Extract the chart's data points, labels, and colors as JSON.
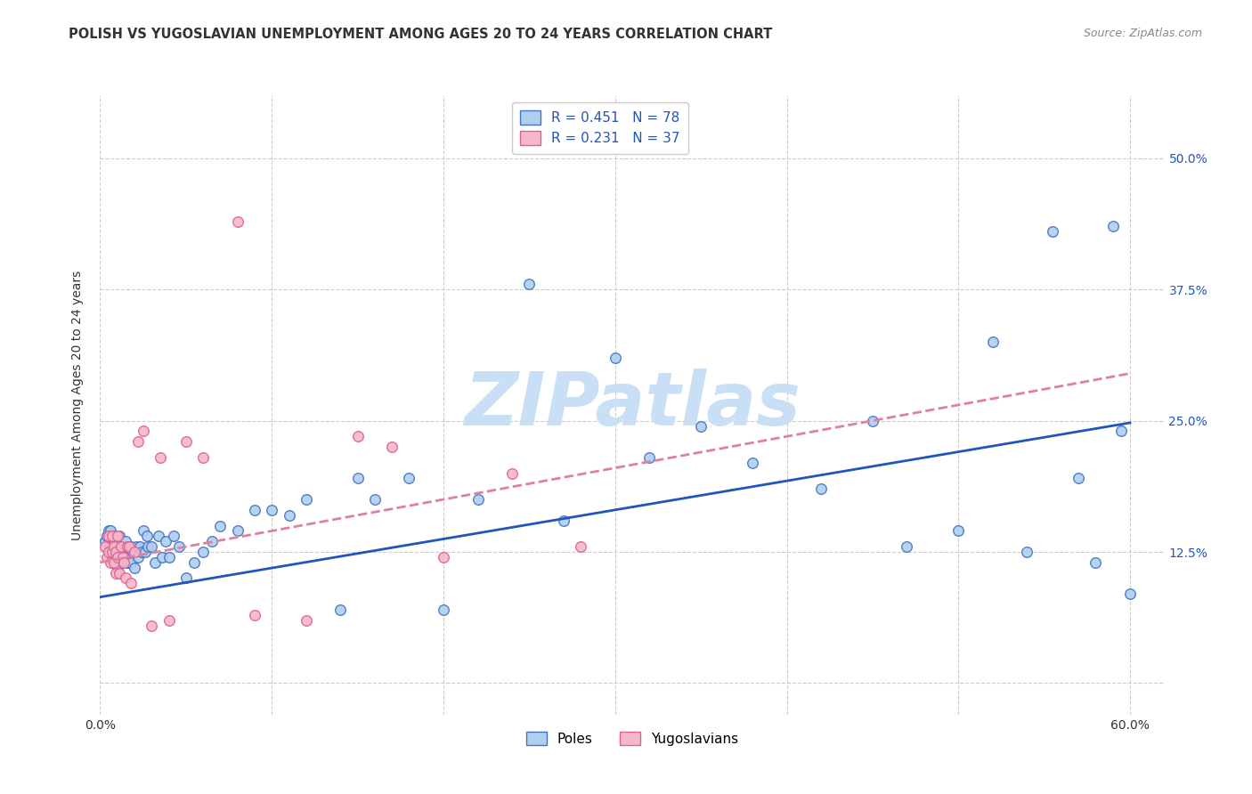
{
  "title": "POLISH VS YUGOSLAVIAN UNEMPLOYMENT AMONG AGES 20 TO 24 YEARS CORRELATION CHART",
  "source": "Source: ZipAtlas.com",
  "ylabel": "Unemployment Among Ages 20 to 24 years",
  "xlim": [
    0.0,
    0.62
  ],
  "ylim": [
    -0.03,
    0.56
  ],
  "xtick_positions": [
    0.0,
    0.1,
    0.2,
    0.3,
    0.4,
    0.5,
    0.6
  ],
  "xticklabels": [
    "0.0%",
    "",
    "",
    "",
    "",
    "",
    "60.0%"
  ],
  "ytick_positions": [
    0.0,
    0.125,
    0.25,
    0.375,
    0.5
  ],
  "ytick_labels": [
    "",
    "12.5%",
    "25.0%",
    "37.5%",
    "50.0%"
  ],
  "poles_face_color": "#aecfee",
  "poles_edge_color": "#4472c4",
  "yugo_face_color": "#f4b8c8",
  "yugo_edge_color": "#e06090",
  "poles_line_color": "#2255bb",
  "yugo_line_color": "#e080a0",
  "legend_text_color": "#2255bb",
  "background_color": "#ffffff",
  "grid_color": "#cccccc",
  "watermark": "ZIPatlas",
  "watermark_color": "#c8dff5",
  "title_color": "#333333",
  "source_color": "#888888",
  "ylabel_color": "#333333",
  "tick_label_color_right": "#2255bb",
  "poles_trendline_start_y": 0.082,
  "poles_trendline_end_y": 0.248,
  "yugo_trendline_start_x": 0.0,
  "yugo_trendline_start_y": 0.115,
  "yugo_trendline_end_x": 0.6,
  "yugo_trendline_end_y": 0.295,
  "poles_x": [
    0.003,
    0.004,
    0.005,
    0.005,
    0.006,
    0.006,
    0.007,
    0.007,
    0.008,
    0.008,
    0.009,
    0.009,
    0.01,
    0.01,
    0.011,
    0.011,
    0.012,
    0.013,
    0.013,
    0.014,
    0.015,
    0.015,
    0.016,
    0.017,
    0.018,
    0.018,
    0.019,
    0.02,
    0.021,
    0.022,
    0.023,
    0.024,
    0.025,
    0.026,
    0.027,
    0.028,
    0.03,
    0.032,
    0.034,
    0.036,
    0.038,
    0.04,
    0.043,
    0.046,
    0.05,
    0.055,
    0.06,
    0.065,
    0.07,
    0.08,
    0.09,
    0.1,
    0.11,
    0.12,
    0.14,
    0.15,
    0.16,
    0.18,
    0.2,
    0.22,
    0.25,
    0.27,
    0.3,
    0.32,
    0.35,
    0.38,
    0.42,
    0.45,
    0.47,
    0.5,
    0.52,
    0.54,
    0.555,
    0.57,
    0.58,
    0.59,
    0.595,
    0.6
  ],
  "poles_y": [
    0.135,
    0.14,
    0.125,
    0.145,
    0.13,
    0.145,
    0.12,
    0.14,
    0.115,
    0.135,
    0.125,
    0.14,
    0.11,
    0.135,
    0.12,
    0.14,
    0.125,
    0.115,
    0.13,
    0.125,
    0.12,
    0.135,
    0.115,
    0.13,
    0.115,
    0.13,
    0.125,
    0.11,
    0.13,
    0.12,
    0.13,
    0.125,
    0.145,
    0.125,
    0.14,
    0.13,
    0.13,
    0.115,
    0.14,
    0.12,
    0.135,
    0.12,
    0.14,
    0.13,
    0.1,
    0.115,
    0.125,
    0.135,
    0.15,
    0.145,
    0.165,
    0.165,
    0.16,
    0.175,
    0.07,
    0.195,
    0.175,
    0.195,
    0.07,
    0.175,
    0.38,
    0.155,
    0.31,
    0.215,
    0.245,
    0.21,
    0.185,
    0.25,
    0.13,
    0.145,
    0.325,
    0.125,
    0.43,
    0.195,
    0.115,
    0.435,
    0.24,
    0.085
  ],
  "yugo_x": [
    0.003,
    0.004,
    0.005,
    0.005,
    0.006,
    0.007,
    0.007,
    0.008,
    0.008,
    0.009,
    0.009,
    0.01,
    0.01,
    0.011,
    0.012,
    0.013,
    0.014,
    0.015,
    0.016,
    0.017,
    0.018,
    0.02,
    0.022,
    0.025,
    0.03,
    0.035,
    0.04,
    0.05,
    0.06,
    0.08,
    0.09,
    0.12,
    0.15,
    0.17,
    0.2,
    0.24,
    0.28
  ],
  "yugo_y": [
    0.13,
    0.12,
    0.14,
    0.125,
    0.115,
    0.125,
    0.14,
    0.115,
    0.13,
    0.105,
    0.125,
    0.12,
    0.14,
    0.105,
    0.13,
    0.12,
    0.115,
    0.1,
    0.13,
    0.13,
    0.095,
    0.125,
    0.23,
    0.24,
    0.055,
    0.215,
    0.06,
    0.23,
    0.215,
    0.44,
    0.065,
    0.06,
    0.235,
    0.225,
    0.12,
    0.2,
    0.13
  ],
  "title_fontsize": 10.5,
  "source_fontsize": 9,
  "axis_fontsize": 10,
  "tick_fontsize": 10,
  "legend_fontsize": 11,
  "watermark_fontsize": 60,
  "marker_size": 70,
  "marker_linewidth": 1.0,
  "trendline_linewidth": 2.0
}
